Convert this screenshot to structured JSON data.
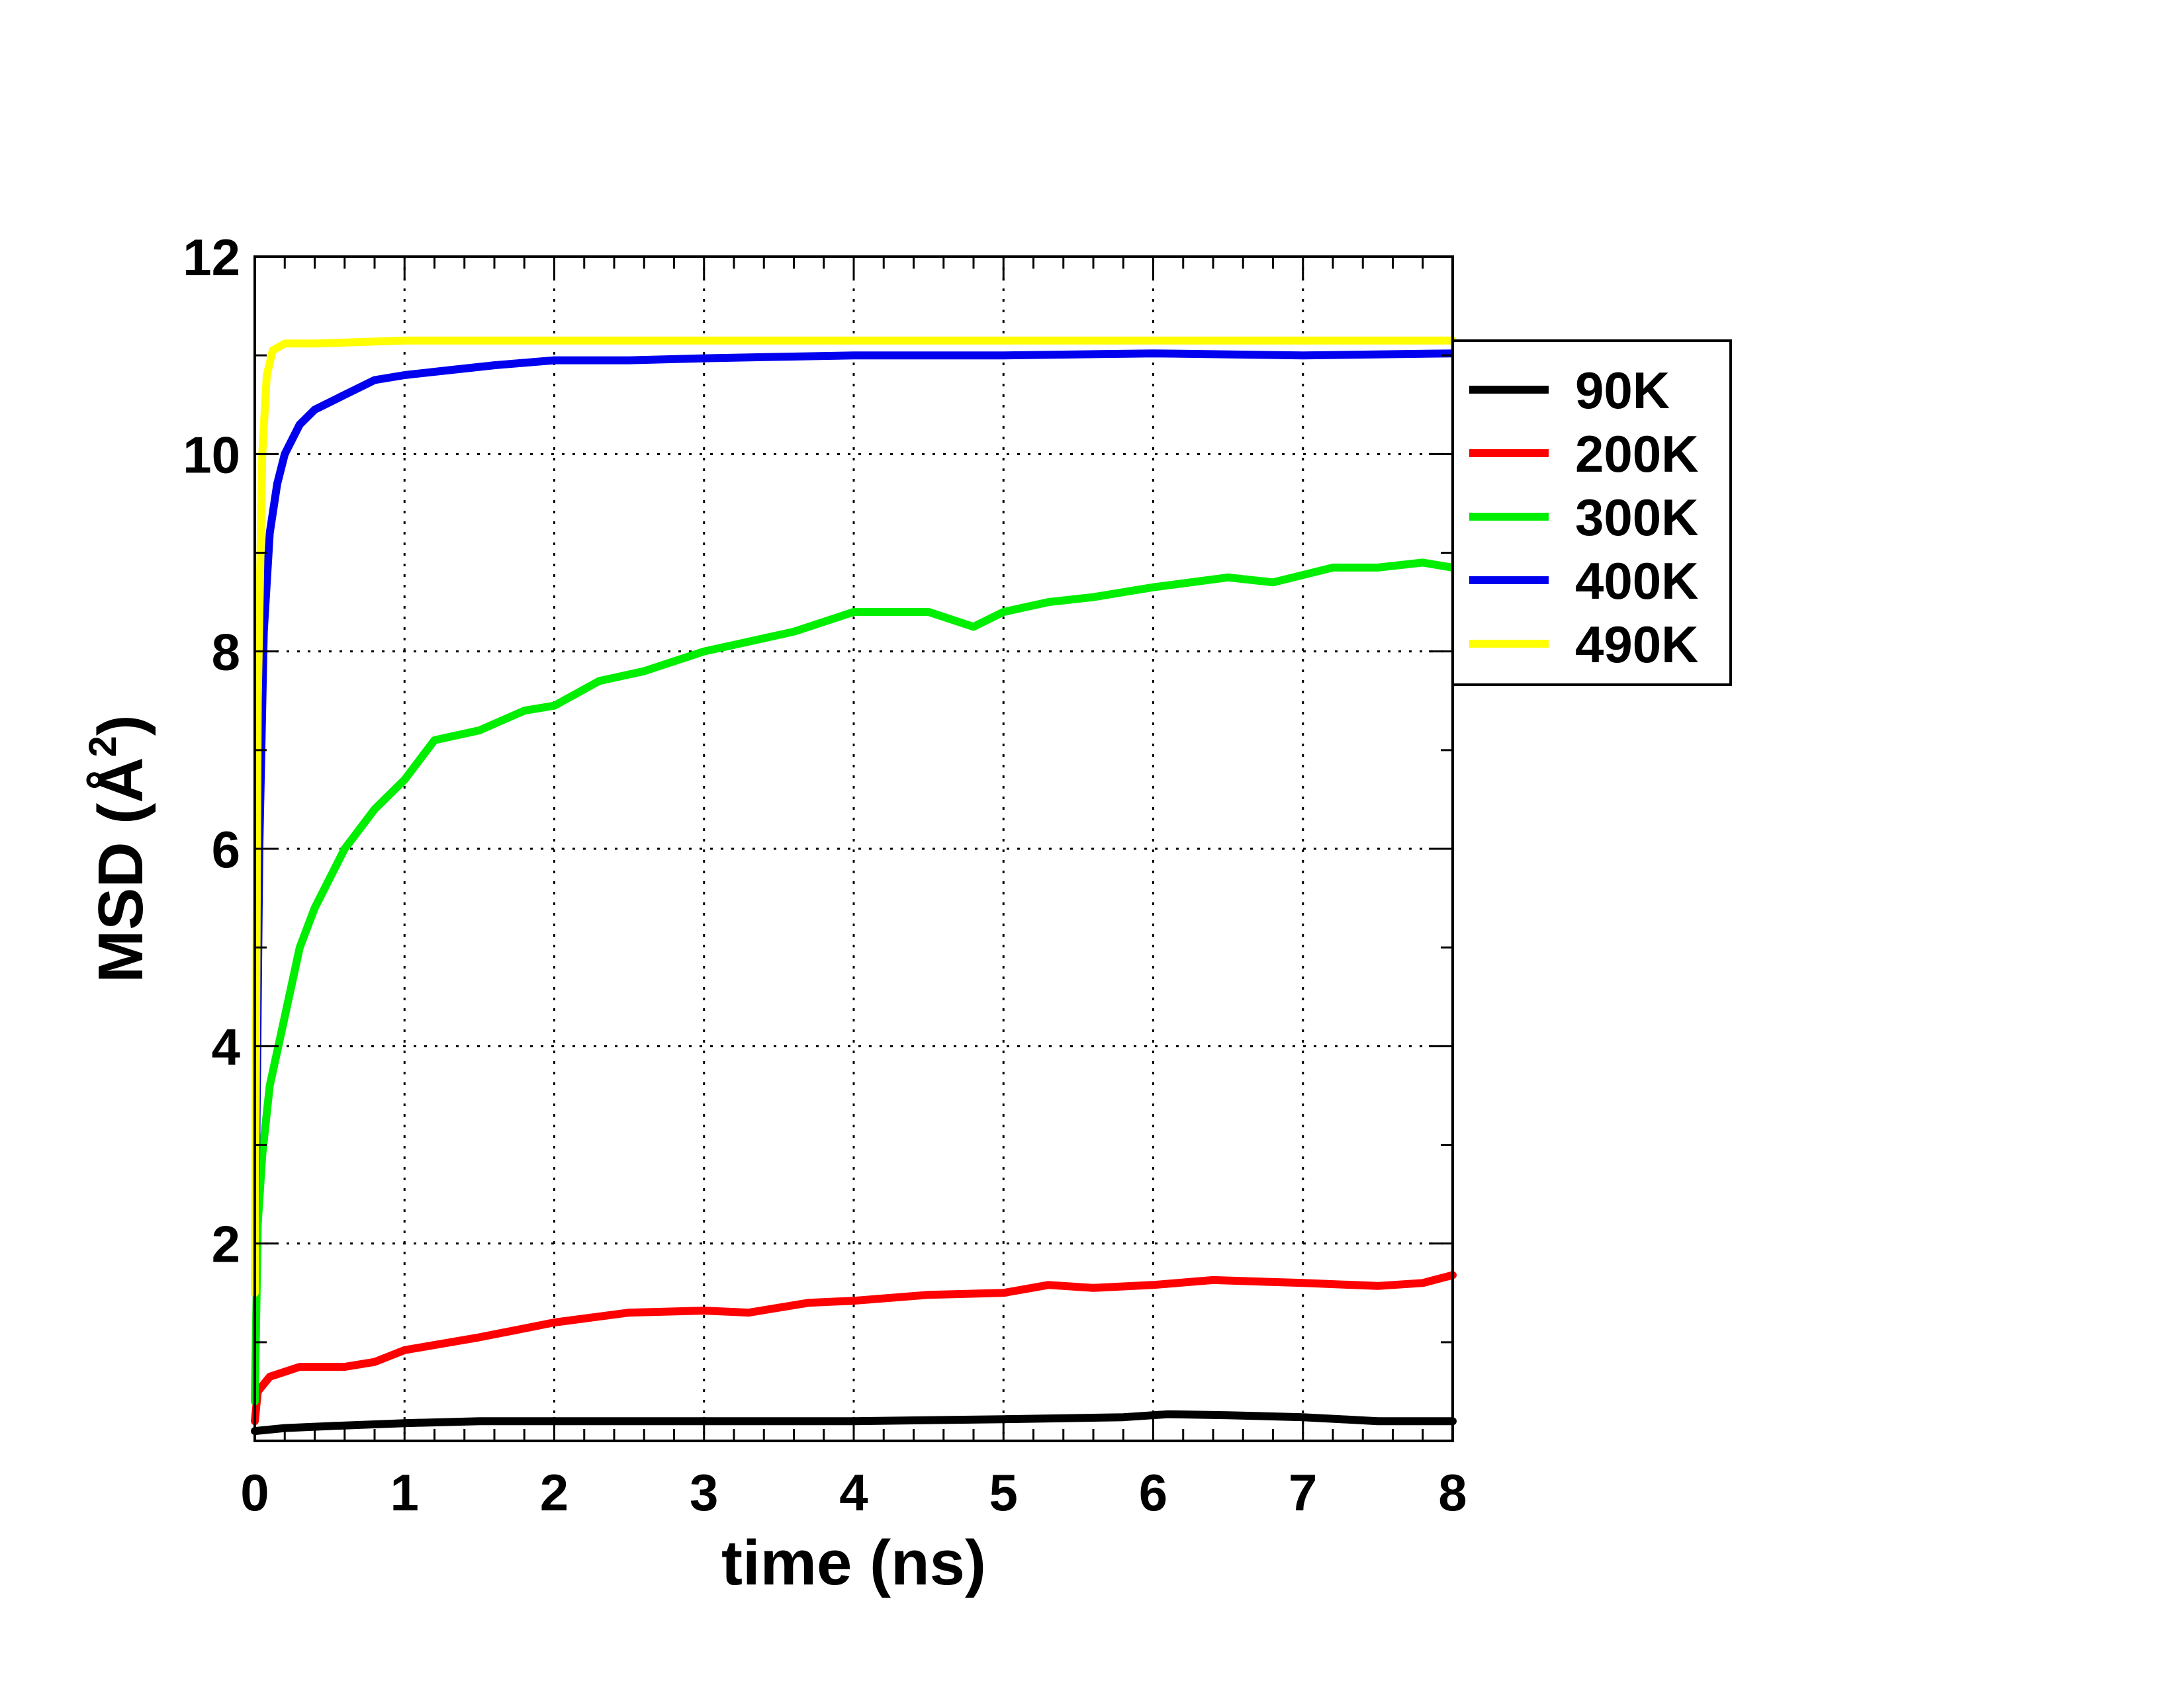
{
  "chart_data": {
    "type": "line",
    "title": "",
    "xlabel": "time (ns)",
    "ylabel": {
      "text": "MSD (Å",
      "sup": "2",
      "close": ")"
    },
    "xlim": [
      0,
      8
    ],
    "ylim": [
      0,
      12
    ],
    "xticks": [
      0,
      1,
      2,
      3,
      4,
      5,
      6,
      7,
      8
    ],
    "yticks": [
      2,
      4,
      6,
      8,
      10,
      12
    ],
    "grid": true,
    "legend_position": "right",
    "series": [
      {
        "name": "90K",
        "color": "#000000",
        "x": [
          0,
          0.2,
          0.5,
          1,
          1.5,
          2,
          3,
          4,
          5,
          5.8,
          6.1,
          6.5,
          7,
          7.5,
          8
        ],
        "y": [
          0.1,
          0.13,
          0.15,
          0.18,
          0.2,
          0.2,
          0.2,
          0.2,
          0.22,
          0.24,
          0.27,
          0.26,
          0.24,
          0.2,
          0.2
        ]
      },
      {
        "name": "200K",
        "color": "#ff0000",
        "x": [
          0,
          0.02,
          0.1,
          0.3,
          0.6,
          0.8,
          1,
          1.5,
          2,
          2.5,
          3,
          3.3,
          3.7,
          4,
          4.5,
          5,
          5.3,
          5.6,
          6,
          6.4,
          7,
          7.5,
          7.8,
          8
        ],
        "y": [
          0.2,
          0.5,
          0.65,
          0.75,
          0.75,
          0.8,
          0.92,
          1.05,
          1.2,
          1.3,
          1.32,
          1.3,
          1.4,
          1.42,
          1.48,
          1.5,
          1.58,
          1.55,
          1.58,
          1.63,
          1.6,
          1.57,
          1.6,
          1.68
        ]
      },
      {
        "name": "300K",
        "color": "#00ee00",
        "x": [
          0,
          0.02,
          0.05,
          0.1,
          0.2,
          0.3,
          0.4,
          0.5,
          0.6,
          0.8,
          1,
          1.2,
          1.5,
          1.8,
          2,
          2.3,
          2.6,
          3,
          3.3,
          3.6,
          4,
          4.5,
          4.8,
          5,
          5.3,
          5.6,
          6,
          6.5,
          6.8,
          7.2,
          7.5,
          7.8,
          8
        ],
        "y": [
          0.4,
          2.2,
          2.9,
          3.6,
          4.3,
          5.0,
          5.4,
          5.7,
          6.0,
          6.4,
          6.7,
          7.1,
          7.2,
          7.4,
          7.45,
          7.7,
          7.8,
          8.0,
          8.1,
          8.2,
          8.4,
          8.4,
          8.25,
          8.4,
          8.5,
          8.55,
          8.65,
          8.75,
          8.7,
          8.85,
          8.85,
          8.9,
          8.85
        ]
      },
      {
        "name": "400K",
        "color": "#0000ee",
        "x": [
          0,
          0.03,
          0.06,
          0.1,
          0.15,
          0.2,
          0.3,
          0.4,
          0.6,
          0.8,
          1,
          1.3,
          1.6,
          2,
          2.5,
          3,
          4,
          5,
          6,
          7,
          8
        ],
        "y": [
          1.5,
          6.0,
          8.2,
          9.2,
          9.7,
          10.0,
          10.3,
          10.45,
          10.6,
          10.75,
          10.8,
          10.85,
          10.9,
          10.95,
          10.95,
          10.97,
          11.0,
          11.0,
          11.02,
          11.0,
          11.02
        ]
      },
      {
        "name": "490K",
        "color": "#ffff00",
        "x": [
          0,
          0.02,
          0.05,
          0.08,
          0.12,
          0.2,
          0.4,
          1,
          2,
          3,
          4,
          5,
          6,
          7,
          8
        ],
        "y": [
          1.5,
          7.5,
          10.0,
          10.8,
          11.05,
          11.12,
          11.12,
          11.15,
          11.15,
          11.15,
          11.15,
          11.15,
          11.15,
          11.15,
          11.15
        ]
      }
    ]
  }
}
